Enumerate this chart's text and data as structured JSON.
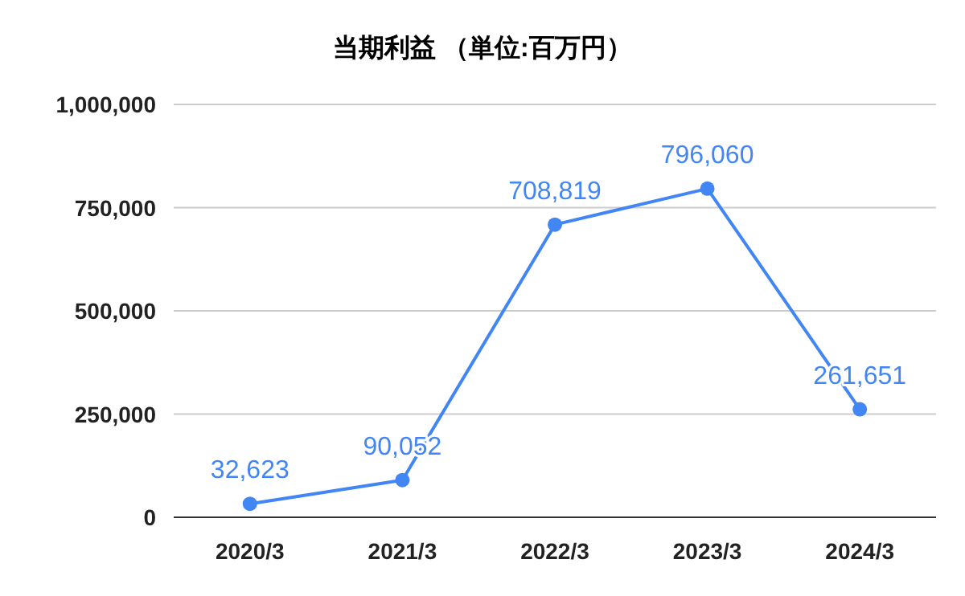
{
  "chart_data": {
    "type": "line",
    "title": "当期利益 （単位:百万円）",
    "categories": [
      "2020/3",
      "2021/3",
      "2022/3",
      "2023/3",
      "2024/3"
    ],
    "values": [
      32623,
      90052,
      708819,
      796060,
      261651
    ],
    "value_labels": [
      "32,623",
      "90,052",
      "708,819",
      "796,060",
      "261,651"
    ],
    "color": "#4285f4",
    "ylim": [
      0,
      1000000
    ],
    "yticks": [
      0,
      {
        "value": 250000,
        "label": "250,000"
      },
      {
        "value": 500000,
        "label": "500,000"
      },
      {
        "value": 750000,
        "label": "750,000"
      },
      {
        "value": 1000000,
        "label": "1,000,000"
      }
    ],
    "grid": "y",
    "marker": "circle",
    "line_style": "solid"
  }
}
